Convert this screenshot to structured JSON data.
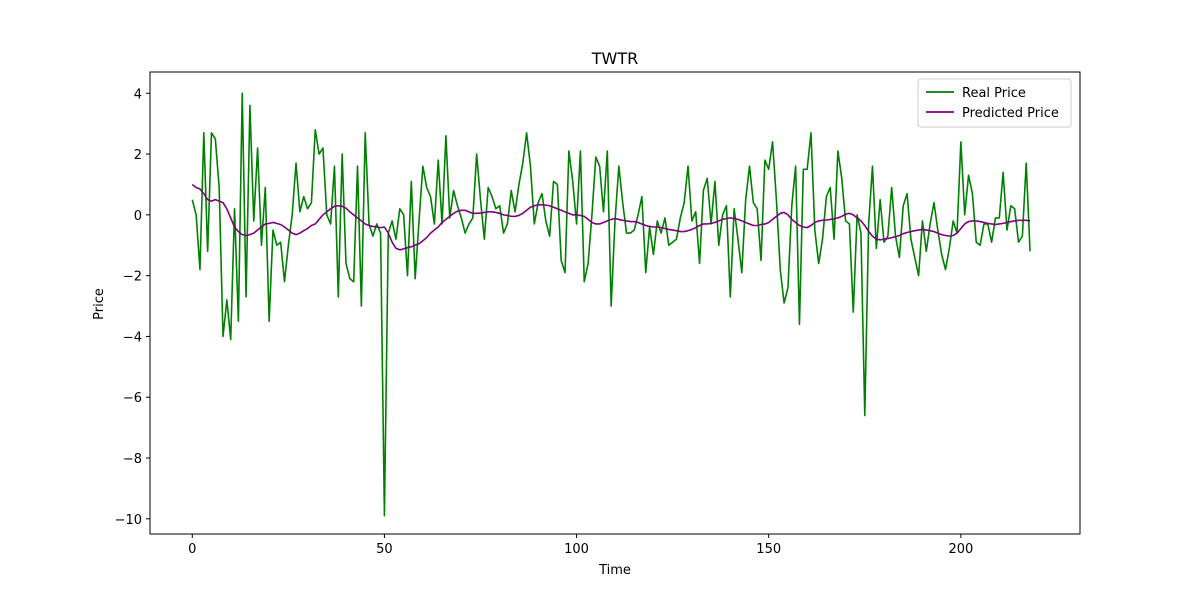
{
  "chart_data": {
    "type": "line",
    "title": "TWTR",
    "xlabel": "Time",
    "ylabel": "Price",
    "xlim": [
      -11,
      231
    ],
    "ylim": [
      -10.5,
      4.7
    ],
    "xticks": [
      0,
      50,
      100,
      150,
      200
    ],
    "yticks": [
      -10,
      -8,
      -6,
      -4,
      -2,
      0,
      2,
      4
    ],
    "grid": false,
    "legend_position": "top-right",
    "series": [
      {
        "name": "Real Price",
        "color": "#008000",
        "values": [
          0.5,
          0.0,
          -1.8,
          2.7,
          -1.2,
          2.7,
          2.5,
          0.9,
          -4.0,
          -2.8,
          -4.1,
          0.2,
          -3.5,
          4.0,
          -2.7,
          3.6,
          -0.2,
          2.2,
          -1.0,
          0.9,
          -3.5,
          -0.5,
          -1.0,
          -0.9,
          -2.2,
          -1.0,
          0.0,
          1.7,
          0.1,
          0.6,
          0.2,
          0.4,
          2.8,
          2.0,
          2.2,
          0.0,
          -0.3,
          1.6,
          -2.7,
          2.0,
          -1.6,
          -2.1,
          -2.2,
          1.6,
          -3.0,
          2.7,
          -0.3,
          -0.7,
          -0.3,
          -0.6,
          -9.9,
          -0.6,
          -0.2,
          -0.8,
          0.2,
          0.0,
          -2.0,
          1.1,
          -2.1,
          -0.2,
          1.6,
          0.9,
          0.6,
          -0.3,
          1.8,
          -0.3,
          2.6,
          -0.1,
          0.8,
          0.3,
          -0.1,
          -0.6,
          -0.3,
          -0.1,
          2.0,
          0.5,
          -0.8,
          0.9,
          0.6,
          0.2,
          0.3,
          -0.6,
          -0.3,
          0.8,
          0.1,
          1.0,
          1.7,
          2.7,
          1.6,
          -0.3,
          0.4,
          0.7,
          -0.2,
          -0.7,
          1.1,
          1.0,
          -1.5,
          -1.9,
          2.1,
          1.1,
          -0.3,
          2.1,
          -2.2,
          -1.6,
          0.0,
          1.9,
          1.6,
          0.1,
          2.1,
          -3.0,
          -0.2,
          1.6,
          0.4,
          -0.6,
          -0.6,
          -0.5,
          0.0,
          0.6,
          -1.9,
          -0.4,
          -1.3,
          -0.2,
          -0.6,
          -0.1,
          -1.0,
          -0.9,
          -0.8,
          -0.1,
          0.4,
          1.6,
          -0.2,
          0.1,
          -1.6,
          0.8,
          1.2,
          -0.3,
          1.1,
          -1.0,
          0.0,
          0.3,
          -2.7,
          0.2,
          -0.8,
          -1.9,
          0.5,
          1.6,
          0.4,
          0.2,
          -1.5,
          1.8,
          1.5,
          2.4,
          0.5,
          -1.8,
          -2.9,
          -2.4,
          0.3,
          1.6,
          -3.6,
          1.5,
          1.5,
          2.7,
          -0.5,
          -1.6,
          -0.8,
          0.6,
          0.9,
          -0.8,
          2.1,
          1.2,
          -0.2,
          -0.3,
          -3.2,
          0.0,
          -0.6,
          -6.6,
          -0.3,
          1.6,
          -1.1,
          0.5,
          -0.9,
          -0.7,
          0.9,
          -0.7,
          -1.4,
          0.3,
          0.7,
          -0.8,
          -1.4,
          -2.0,
          -0.2,
          -1.2,
          -0.3,
          0.4,
          -0.5,
          -1.3,
          -1.8,
          -1.1,
          -0.2,
          -0.6,
          2.4,
          0.0,
          1.3,
          0.7,
          -0.9,
          -1.0,
          -0.3,
          -0.3,
          -0.9,
          -0.1,
          -0.1,
          1.4,
          -0.5,
          0.3,
          0.2,
          -0.9,
          -0.7,
          1.7,
          -1.2
        ]
      },
      {
        "name": "Predicted Price",
        "color": "#800080",
        "values": [
          1.0,
          0.9,
          0.85,
          0.7,
          0.5,
          0.45,
          0.5,
          0.45,
          0.4,
          0.2,
          -0.1,
          -0.4,
          -0.55,
          -0.65,
          -0.68,
          -0.65,
          -0.6,
          -0.5,
          -0.4,
          -0.3,
          -0.28,
          -0.25,
          -0.28,
          -0.32,
          -0.4,
          -0.5,
          -0.6,
          -0.65,
          -0.6,
          -0.52,
          -0.45,
          -0.35,
          -0.3,
          -0.15,
          0.0,
          0.1,
          0.2,
          0.28,
          0.3,
          0.28,
          0.22,
          0.1,
          0.0,
          -0.1,
          -0.2,
          -0.3,
          -0.35,
          -0.38,
          -0.4,
          -0.42,
          -0.4,
          -0.6,
          -0.9,
          -1.1,
          -1.15,
          -1.12,
          -1.08,
          -1.05,
          -1.0,
          -0.95,
          -0.85,
          -0.75,
          -0.6,
          -0.5,
          -0.4,
          -0.25,
          -0.15,
          -0.05,
          0.05,
          0.12,
          0.15,
          0.15,
          0.1,
          0.05,
          0.05,
          0.06,
          0.08,
          0.1,
          0.1,
          0.08,
          0.05,
          0.0,
          -0.02,
          -0.05,
          -0.05,
          -0.02,
          0.05,
          0.15,
          0.25,
          0.3,
          0.33,
          0.33,
          0.32,
          0.3,
          0.25,
          0.2,
          0.15,
          0.1,
          0.05,
          0.0,
          0.0,
          -0.02,
          -0.05,
          -0.15,
          -0.25,
          -0.3,
          -0.3,
          -0.25,
          -0.2,
          -0.15,
          -0.12,
          -0.15,
          -0.18,
          -0.2,
          -0.22,
          -0.22,
          -0.25,
          -0.3,
          -0.35,
          -0.38,
          -0.4,
          -0.4,
          -0.42,
          -0.45,
          -0.48,
          -0.5,
          -0.52,
          -0.55,
          -0.55,
          -0.52,
          -0.48,
          -0.42,
          -0.35,
          -0.3,
          -0.3,
          -0.28,
          -0.25,
          -0.2,
          -0.15,
          -0.12,
          -0.1,
          -0.12,
          -0.15,
          -0.2,
          -0.25,
          -0.3,
          -0.35,
          -0.35,
          -0.32,
          -0.3,
          -0.25,
          -0.15,
          -0.05,
          0.05,
          0.08,
          0.0,
          -0.15,
          -0.25,
          -0.35,
          -0.4,
          -0.42,
          -0.35,
          -0.25,
          -0.2,
          -0.18,
          -0.17,
          -0.15,
          -0.13,
          -0.1,
          -0.05,
          0.02,
          0.05,
          0.0,
          -0.1,
          -0.2,
          -0.35,
          -0.55,
          -0.7,
          -0.8,
          -0.82,
          -0.8,
          -0.78,
          -0.75,
          -0.72,
          -0.68,
          -0.62,
          -0.58,
          -0.55,
          -0.52,
          -0.5,
          -0.48,
          -0.5,
          -0.52,
          -0.55,
          -0.6,
          -0.65,
          -0.68,
          -0.7,
          -0.68,
          -0.6,
          -0.45,
          -0.3,
          -0.22,
          -0.2,
          -0.2,
          -0.22,
          -0.25,
          -0.28,
          -0.3,
          -0.32,
          -0.3,
          -0.28,
          -0.25,
          -0.22,
          -0.2,
          -0.18,
          -0.18,
          -0.18,
          -0.2
        ]
      }
    ]
  }
}
